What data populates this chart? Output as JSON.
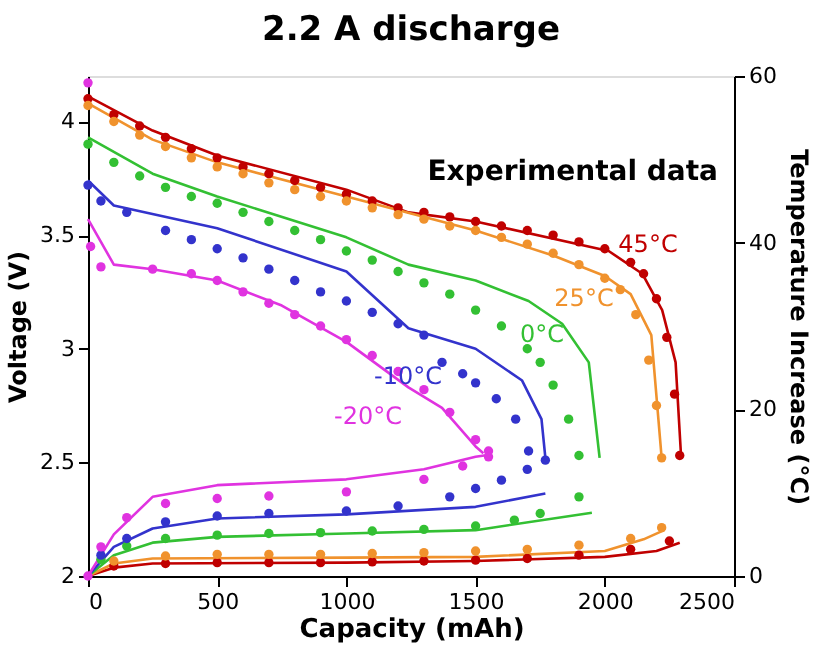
{
  "chart_data": {
    "type": "line",
    "title": "2.2 A discharge",
    "xlabel": "Capacity (mAh)",
    "ylabel": "Voltage (V)",
    "y2label": "Temperature Increase (°C)",
    "xlim": [
      0,
      2500
    ],
    "xticks": [
      0,
      500,
      1000,
      1500,
      2000,
      2500
    ],
    "ylim": [
      2,
      4.2
    ],
    "yticks": [
      2,
      2.5,
      3,
      3.5,
      4
    ],
    "y2lim": [
      0,
      60
    ],
    "y2ticks": [
      0,
      20,
      40,
      60
    ],
    "grid": false,
    "line_style": "solid",
    "series": [
      {
        "type": "line",
        "axis": "y",
        "color": "#c00000",
        "x": [
          0,
          250,
          500,
          1000,
          1240,
          1500,
          2015,
          2145,
          2222,
          2274,
          2295
        ],
        "values": [
          4.11,
          3.96,
          3.85,
          3.7,
          3.6,
          3.56,
          3.43,
          3.33,
          3.17,
          2.94,
          2.53
        ]
      },
      {
        "type": "line",
        "axis": "y",
        "color": "#f0922d",
        "x": [
          0,
          250,
          500,
          1000,
          1500,
          1800,
          2000,
          2100,
          2180,
          2220
        ],
        "values": [
          4.08,
          3.92,
          3.82,
          3.67,
          3.52,
          3.41,
          3.32,
          3.24,
          3.06,
          2.52
        ]
      },
      {
        "type": "line",
        "axis": "y",
        "color": "#33c033",
        "x": [
          0,
          250,
          500,
          1000,
          1240,
          1500,
          1705,
          1835,
          1938,
          1980
        ],
        "values": [
          3.93,
          3.77,
          3.67,
          3.49,
          3.37,
          3.3,
          3.21,
          3.11,
          2.94,
          2.52
        ]
      },
      {
        "type": "line",
        "axis": "y",
        "color": "#3333cc",
        "x": [
          0,
          100,
          500,
          1000,
          1240,
          1500,
          1680,
          1755,
          1770
        ],
        "values": [
          3.74,
          3.63,
          3.53,
          3.34,
          3.09,
          3.0,
          2.86,
          2.69,
          2.52
        ]
      },
      {
        "type": "line",
        "axis": "y",
        "color": "#e033e0",
        "x": [
          0,
          100,
          250,
          500,
          750,
          1000,
          1240,
          1370,
          1500,
          1530
        ],
        "values": [
          3.57,
          3.37,
          3.35,
          3.3,
          3.19,
          3.03,
          2.83,
          2.74,
          2.57,
          2.54
        ]
      },
      {
        "type": "scatter",
        "marker": "circle",
        "axis": "y",
        "color": "#c00000",
        "x": [
          0,
          100,
          200,
          300,
          400,
          500,
          600,
          700,
          800,
          900,
          1000,
          1100,
          1200,
          1300,
          1400,
          1500,
          1600,
          1700,
          1800,
          1900,
          2000,
          2100,
          2150,
          2200,
          2240,
          2270,
          2290
        ],
        "values": [
          4.1,
          4.03,
          3.98,
          3.93,
          3.88,
          3.84,
          3.8,
          3.77,
          3.74,
          3.71,
          3.68,
          3.65,
          3.62,
          3.6,
          3.58,
          3.56,
          3.54,
          3.52,
          3.5,
          3.47,
          3.44,
          3.38,
          3.33,
          3.22,
          3.05,
          2.8,
          2.53
        ]
      },
      {
        "type": "scatter",
        "marker": "circle",
        "axis": "y",
        "color": "#f0922d",
        "x": [
          0,
          100,
          200,
          300,
          400,
          500,
          600,
          700,
          800,
          900,
          1000,
          1100,
          1200,
          1300,
          1400,
          1500,
          1600,
          1700,
          1800,
          1900,
          2000,
          2060,
          2120,
          2170,
          2200,
          2220
        ],
        "values": [
          4.07,
          4.0,
          3.94,
          3.89,
          3.84,
          3.8,
          3.77,
          3.73,
          3.7,
          3.67,
          3.65,
          3.62,
          3.59,
          3.57,
          3.54,
          3.52,
          3.49,
          3.46,
          3.42,
          3.37,
          3.31,
          3.26,
          3.15,
          2.95,
          2.75,
          2.52
        ]
      },
      {
        "type": "scatter",
        "marker": "circle",
        "axis": "y",
        "color": "#33c033",
        "x": [
          0,
          100,
          200,
          300,
          400,
          500,
          600,
          700,
          800,
          900,
          1000,
          1100,
          1200,
          1300,
          1400,
          1500,
          1600,
          1700,
          1750,
          1800,
          1860,
          1900
        ],
        "values": [
          3.9,
          3.82,
          3.76,
          3.71,
          3.67,
          3.64,
          3.6,
          3.56,
          3.52,
          3.48,
          3.43,
          3.39,
          3.34,
          3.29,
          3.24,
          3.17,
          3.1,
          3.0,
          2.94,
          2.84,
          2.69,
          2.53
        ]
      },
      {
        "type": "scatter",
        "marker": "circle",
        "axis": "y",
        "color": "#3333cc",
        "x": [
          0,
          50,
          150,
          300,
          400,
          500,
          600,
          700,
          800,
          900,
          1000,
          1100,
          1200,
          1300,
          1370,
          1450,
          1500,
          1580,
          1655,
          1705
        ],
        "values": [
          3.72,
          3.65,
          3.6,
          3.52,
          3.48,
          3.44,
          3.4,
          3.35,
          3.3,
          3.25,
          3.21,
          3.16,
          3.11,
          3.06,
          2.94,
          2.89,
          2.85,
          2.78,
          2.69,
          2.55
        ]
      },
      {
        "type": "scatter",
        "marker": "circle",
        "axis": "y",
        "color": "#e033e0",
        "x": [
          0,
          10,
          50,
          250,
          400,
          500,
          600,
          700,
          800,
          900,
          1000,
          1100,
          1200,
          1300,
          1400,
          1500,
          1550
        ],
        "values": [
          4.17,
          3.45,
          3.36,
          3.35,
          3.33,
          3.3,
          3.25,
          3.2,
          3.15,
          3.1,
          3.04,
          2.97,
          2.9,
          2.82,
          2.72,
          2.6,
          2.55
        ]
      },
      {
        "type": "line",
        "axis": "y2",
        "color": "#c00000",
        "x": [
          0,
          100,
          250,
          1000,
          1500,
          2000,
          2200,
          2290
        ],
        "values": [
          0,
          1,
          1.5,
          1.6,
          1.8,
          2.3,
          3,
          4
        ]
      },
      {
        "type": "line",
        "axis": "y2",
        "color": "#f0922d",
        "x": [
          0,
          100,
          250,
          1000,
          1500,
          2000,
          2150,
          2230
        ],
        "values": [
          0,
          1.5,
          2.1,
          2.2,
          2.3,
          3,
          4.4,
          5.5
        ]
      },
      {
        "type": "line",
        "axis": "y2",
        "color": "#33c033",
        "x": [
          0,
          100,
          250,
          500,
          1000,
          1500,
          1950
        ],
        "values": [
          0,
          2.5,
          4,
          4.7,
          5.1,
          5.5,
          7.6
        ]
      },
      {
        "type": "line",
        "axis": "y2",
        "color": "#3333cc",
        "x": [
          0,
          100,
          250,
          500,
          1000,
          1500,
          1770
        ],
        "values": [
          0,
          3.5,
          5.7,
          6.9,
          7.4,
          8.3,
          9.9
        ]
      },
      {
        "type": "line",
        "axis": "y2",
        "color": "#e033e0",
        "x": [
          0,
          100,
          250,
          500,
          1000,
          1300,
          1500,
          1540
        ],
        "values": [
          0,
          5,
          9.5,
          10.9,
          11.6,
          12.8,
          14.3,
          14.5
        ]
      },
      {
        "type": "scatter",
        "marker": "circle",
        "axis": "y2",
        "color": "#c00000",
        "x": [
          100,
          300,
          500,
          700,
          900,
          1100,
          1300,
          1500,
          1700,
          1900,
          2100,
          2250
        ],
        "values": [
          1.2,
          1.5,
          1.6,
          1.6,
          1.6,
          1.7,
          1.8,
          1.9,
          2.1,
          2.5,
          3.2,
          4.2
        ]
      },
      {
        "type": "scatter",
        "marker": "circle",
        "axis": "y2",
        "color": "#f0922d",
        "x": [
          100,
          300,
          500,
          700,
          900,
          1100,
          1300,
          1500,
          1700,
          1900,
          2100,
          2220
        ],
        "values": [
          1.8,
          2.4,
          2.6,
          2.6,
          2.6,
          2.7,
          2.8,
          3.0,
          3.2,
          3.7,
          4.5,
          5.8
        ]
      },
      {
        "type": "scatter",
        "marker": "circle",
        "axis": "y2",
        "color": "#33c033",
        "x": [
          50,
          150,
          300,
          500,
          700,
          900,
          1100,
          1300,
          1500,
          1650,
          1750,
          1900
        ],
        "values": [
          2,
          3.6,
          4.5,
          4.9,
          5.1,
          5.2,
          5.4,
          5.6,
          6.0,
          6.7,
          7.5,
          9.5
        ]
      },
      {
        "type": "scatter",
        "marker": "circle",
        "axis": "y2",
        "color": "#3333cc",
        "x": [
          50,
          150,
          300,
          500,
          700,
          1000,
          1200,
          1400,
          1500,
          1600,
          1700,
          1770
        ],
        "values": [
          2.5,
          4.5,
          6.5,
          7.2,
          7.5,
          7.8,
          8.4,
          9.5,
          10.5,
          11.5,
          12.8,
          13.9
        ]
      },
      {
        "type": "scatter",
        "marker": "circle",
        "axis": "y2",
        "color": "#e033e0",
        "x": [
          0,
          50,
          150,
          300,
          500,
          700,
          1000,
          1300,
          1450,
          1550
        ],
        "values": [
          0,
          3.5,
          7,
          8.7,
          9.3,
          9.6,
          10.1,
          11.6,
          13.2,
          14.3
        ]
      }
    ],
    "annotations": [
      "45°C",
      "25°C",
      "0°C",
      "-10°C",
      "-20°C",
      "Experimental data"
    ]
  }
}
